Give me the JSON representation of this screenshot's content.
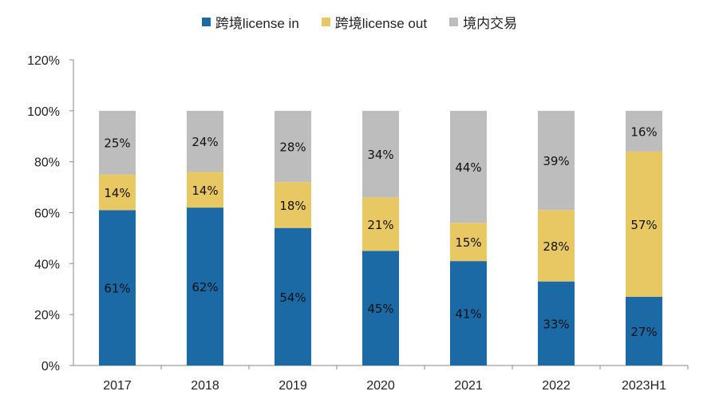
{
  "chart_data": {
    "type": "bar",
    "stacked": true,
    "categories": [
      "2017",
      "2018",
      "2019",
      "2020",
      "2021",
      "2022",
      "2023H1"
    ],
    "series": [
      {
        "name": "跨境license in",
        "color": "#1b6aa5",
        "values": [
          61,
          62,
          54,
          45,
          41,
          33,
          27
        ]
      },
      {
        "name": "跨境license out",
        "color": "#e8c862",
        "values": [
          14,
          14,
          18,
          21,
          15,
          28,
          57
        ]
      },
      {
        "name": "境内交易",
        "color": "#bdbdbd",
        "values": [
          25,
          24,
          28,
          34,
          44,
          39,
          16
        ]
      }
    ],
    "ylim": [
      0,
      120
    ],
    "yticks": [
      "0%",
      "20%",
      "40%",
      "60%",
      "80%",
      "100%",
      "120%"
    ],
    "ytick_values": [
      0,
      20,
      40,
      60,
      80,
      100,
      120
    ],
    "legend_position": "top-center",
    "grid": false,
    "title": "",
    "xlabel": "",
    "ylabel": ""
  }
}
